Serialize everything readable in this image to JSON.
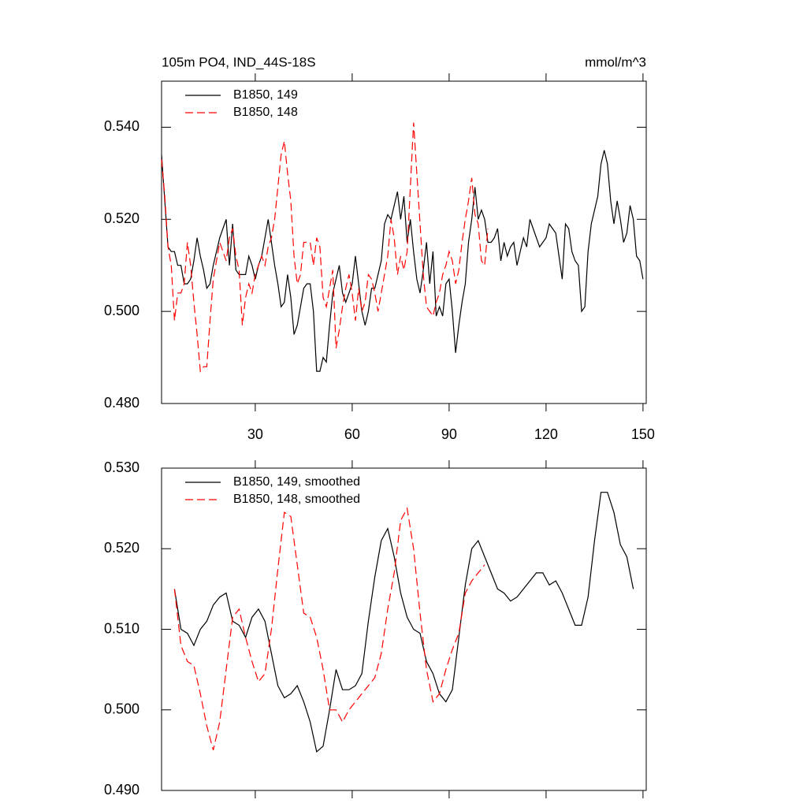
{
  "chart_data": [
    {
      "type": "line",
      "title": "105m PO4, IND_44S-18S",
      "units": "mmol/m^3",
      "xlim": [
        1,
        151
      ],
      "ylim": [
        0.48,
        0.55
      ],
      "xticks": [
        30,
        60,
        90,
        120,
        150
      ],
      "xtick_labels": true,
      "yticks": [
        {
          "value": 0.48,
          "label": "0.480"
        },
        {
          "value": 0.5,
          "label": "0.500"
        },
        {
          "value": 0.52,
          "label": "0.520"
        },
        {
          "value": 0.54,
          "label": "0.540"
        }
      ],
      "legend": "upper left",
      "x": [
        1,
        2,
        3,
        4,
        5,
        6,
        7,
        8,
        9,
        10,
        11,
        12,
        13,
        14,
        15,
        16,
        17,
        18,
        19,
        20,
        21,
        22,
        23,
        24,
        25,
        26,
        27,
        28,
        29,
        30,
        31,
        32,
        33,
        34,
        35,
        36,
        37,
        38,
        39,
        40,
        41,
        42,
        43,
        44,
        45,
        46,
        47,
        48,
        49,
        50,
        51,
        52,
        53,
        54,
        55,
        56,
        57,
        58,
        59,
        60,
        61,
        62,
        63,
        64,
        65,
        66,
        67,
        68,
        69,
        70,
        71,
        72,
        73,
        74,
        75,
        76,
        77,
        78,
        79,
        80,
        81,
        82,
        83,
        84,
        85,
        86,
        87,
        88,
        89,
        90,
        91,
        92,
        93,
        94,
        95,
        96,
        97,
        98,
        99,
        100,
        101,
        102,
        103,
        104,
        105,
        106,
        107,
        108,
        109,
        110,
        111,
        112,
        113,
        114,
        115,
        116,
        117,
        118,
        119,
        120,
        121,
        122,
        123,
        124,
        125,
        126,
        127,
        128,
        129,
        130,
        131,
        132,
        133,
        134,
        135,
        136,
        137,
        138,
        139,
        140,
        141,
        142,
        143,
        144,
        145,
        146,
        147,
        148,
        149,
        150
      ],
      "series": [
        {
          "name": "B1850, 149",
          "color": "#000000",
          "dashed": false,
          "values": [
            0.534,
            0.524,
            0.514,
            0.513,
            0.513,
            0.51,
            0.51,
            0.506,
            0.506,
            0.507,
            0.511,
            0.516,
            0.512,
            0.509,
            0.505,
            0.506,
            0.51,
            0.513,
            0.516,
            0.518,
            0.52,
            0.51,
            0.519,
            0.509,
            0.508,
            0.508,
            0.508,
            0.512,
            0.51,
            0.507,
            0.51,
            0.512,
            0.516,
            0.52,
            0.515,
            0.51,
            0.506,
            0.501,
            0.502,
            0.508,
            0.503,
            0.495,
            0.497,
            0.501,
            0.505,
            0.506,
            0.506,
            0.5,
            0.487,
            0.487,
            0.49,
            0.489,
            0.497,
            0.504,
            0.507,
            0.51,
            0.504,
            0.502,
            0.504,
            0.506,
            0.512,
            0.506,
            0.5,
            0.497,
            0.5,
            0.505,
            0.505,
            0.508,
            0.511,
            0.519,
            0.521,
            0.52,
            0.523,
            0.526,
            0.52,
            0.525,
            0.515,
            0.52,
            0.513,
            0.507,
            0.504,
            0.509,
            0.515,
            0.506,
            0.513,
            0.499,
            0.501,
            0.499,
            0.506,
            0.507,
            0.5,
            0.491,
            0.497,
            0.502,
            0.506,
            0.515,
            0.52,
            0.527,
            0.52,
            0.522,
            0.52,
            0.515,
            0.515,
            0.516,
            0.518,
            0.511,
            0.515,
            0.512,
            0.514,
            0.515,
            0.51,
            0.513,
            0.516,
            0.514,
            0.52,
            0.518,
            0.516,
            0.514,
            0.515,
            0.516,
            0.519,
            0.518,
            0.517,
            0.512,
            0.507,
            0.519,
            0.518,
            0.513,
            0.511,
            0.51,
            0.5,
            0.501,
            0.513,
            0.519,
            0.522,
            0.525,
            0.532,
            0.535,
            0.532,
            0.524,
            0.519,
            0.524,
            0.52,
            0.515,
            0.517,
            0.523,
            0.52,
            0.512,
            0.511,
            0.507
          ]
        },
        {
          "name": "B1850, 148",
          "color": "#ff0000",
          "dashed": true,
          "values": [
            0.533,
            0.525,
            0.514,
            0.51,
            0.498,
            0.504,
            0.504,
            0.506,
            0.515,
            0.51,
            0.502,
            0.495,
            0.487,
            0.488,
            0.488,
            0.498,
            0.507,
            0.511,
            0.515,
            0.513,
            0.511,
            0.516,
            0.518,
            0.512,
            0.509,
            0.497,
            0.503,
            0.506,
            0.504,
            0.508,
            0.51,
            0.512,
            0.51,
            0.514,
            0.516,
            0.52,
            0.527,
            0.534,
            0.537,
            0.53,
            0.524,
            0.512,
            0.506,
            0.508,
            0.515,
            0.515,
            0.515,
            0.51,
            0.516,
            0.514,
            0.503,
            0.501,
            0.505,
            0.509,
            0.492,
            0.496,
            0.501,
            0.505,
            0.508,
            0.504,
            0.498,
            0.505,
            0.5,
            0.502,
            0.508,
            0.507,
            0.504,
            0.5,
            0.504,
            0.508,
            0.512,
            0.52,
            0.516,
            0.508,
            0.512,
            0.509,
            0.513,
            0.527,
            0.541,
            0.53,
            0.519,
            0.508,
            0.501,
            0.5,
            0.499,
            0.502,
            0.504,
            0.508,
            0.51,
            0.513,
            0.511,
            0.506,
            0.509,
            0.515,
            0.52,
            0.524,
            0.529,
            0.521,
            0.519,
            0.511,
            0.51,
            0.518,
            null,
            null,
            null,
            null,
            null,
            null,
            null,
            null,
            null,
            null,
            null,
            null,
            null,
            null,
            null,
            null,
            null,
            null,
            null,
            null,
            null,
            null,
            null,
            null,
            null,
            null,
            null,
            null,
            null,
            null,
            null,
            null,
            null,
            null,
            null,
            null,
            null,
            null,
            null,
            null,
            null,
            null,
            null,
            null,
            null,
            null,
            null,
            null
          ]
        }
      ]
    },
    {
      "type": "line",
      "xlim": [
        1,
        151
      ],
      "ylim": [
        0.49,
        0.53
      ],
      "xticks": [
        30,
        60,
        90,
        120,
        150
      ],
      "xtick_labels": false,
      "yticks": [
        {
          "value": 0.49,
          "label": "0.490"
        },
        {
          "value": 0.5,
          "label": "0.500"
        },
        {
          "value": 0.51,
          "label": "0.510"
        },
        {
          "value": 0.52,
          "label": "0.520"
        },
        {
          "value": 0.53,
          "label": "0.530"
        }
      ],
      "legend": "upper left",
      "x": [
        5,
        7,
        9,
        11,
        13,
        15,
        17,
        19,
        21,
        23,
        25,
        27,
        29,
        31,
        33,
        35,
        37,
        39,
        41,
        43,
        45,
        47,
        49,
        51,
        53,
        55,
        57,
        59,
        61,
        63,
        65,
        67,
        69,
        71,
        73,
        75,
        77,
        79,
        81,
        83,
        85,
        87,
        89,
        91,
        93,
        95,
        97,
        99,
        101,
        103,
        105,
        107,
        109,
        111,
        113,
        115,
        117,
        119,
        121,
        123,
        125,
        127,
        129,
        131,
        133,
        135,
        137,
        139,
        141,
        143,
        145,
        147
      ],
      "series": [
        {
          "name": "B1850, 149, smoothed",
          "color": "#000000",
          "dashed": false,
          "values": [
            0.515,
            0.51,
            0.5095,
            0.508,
            0.51,
            0.511,
            0.513,
            0.514,
            0.5145,
            0.511,
            0.5105,
            0.509,
            0.5115,
            0.5125,
            0.511,
            0.507,
            0.503,
            0.5015,
            0.502,
            0.503,
            0.501,
            0.4985,
            0.4948,
            0.4955,
            0.5,
            0.505,
            0.5025,
            0.5025,
            0.503,
            0.5045,
            0.511,
            0.5165,
            0.521,
            0.5225,
            0.519,
            0.5145,
            0.5115,
            0.51,
            0.5095,
            0.506,
            0.5045,
            0.502,
            0.501,
            0.5025,
            0.509,
            0.5155,
            0.52,
            0.521,
            0.519,
            0.517,
            0.515,
            0.5145,
            0.5135,
            0.514,
            0.515,
            0.516,
            0.517,
            0.517,
            0.5155,
            0.516,
            0.5145,
            0.5125,
            0.5105,
            0.5105,
            0.514,
            0.521,
            0.527,
            0.527,
            0.5245,
            0.5205,
            0.519,
            0.515
          ]
        },
        {
          "name": "B1850, 148, smoothed",
          "color": "#ff0000",
          "dashed": true,
          "values": [
            0.515,
            0.508,
            0.506,
            0.5055,
            0.502,
            0.498,
            0.495,
            0.4985,
            0.505,
            0.5115,
            0.5125,
            0.509,
            0.506,
            0.5035,
            0.5045,
            0.51,
            0.5175,
            0.5245,
            0.524,
            0.518,
            0.512,
            0.5115,
            0.509,
            0.505,
            0.5,
            0.5,
            0.4985,
            0.5,
            0.501,
            0.502,
            0.503,
            0.504,
            0.507,
            0.5125,
            0.517,
            0.5235,
            0.525,
            0.52,
            0.512,
            0.505,
            0.501,
            0.502,
            0.505,
            0.5075,
            0.5095,
            0.5145,
            0.516,
            0.517,
            0.518,
            null,
            null,
            null,
            null,
            null,
            null,
            null,
            null,
            null,
            null,
            null,
            null,
            null,
            null,
            null,
            null,
            null,
            null,
            null,
            null,
            null,
            null,
            null
          ]
        }
      ]
    }
  ]
}
